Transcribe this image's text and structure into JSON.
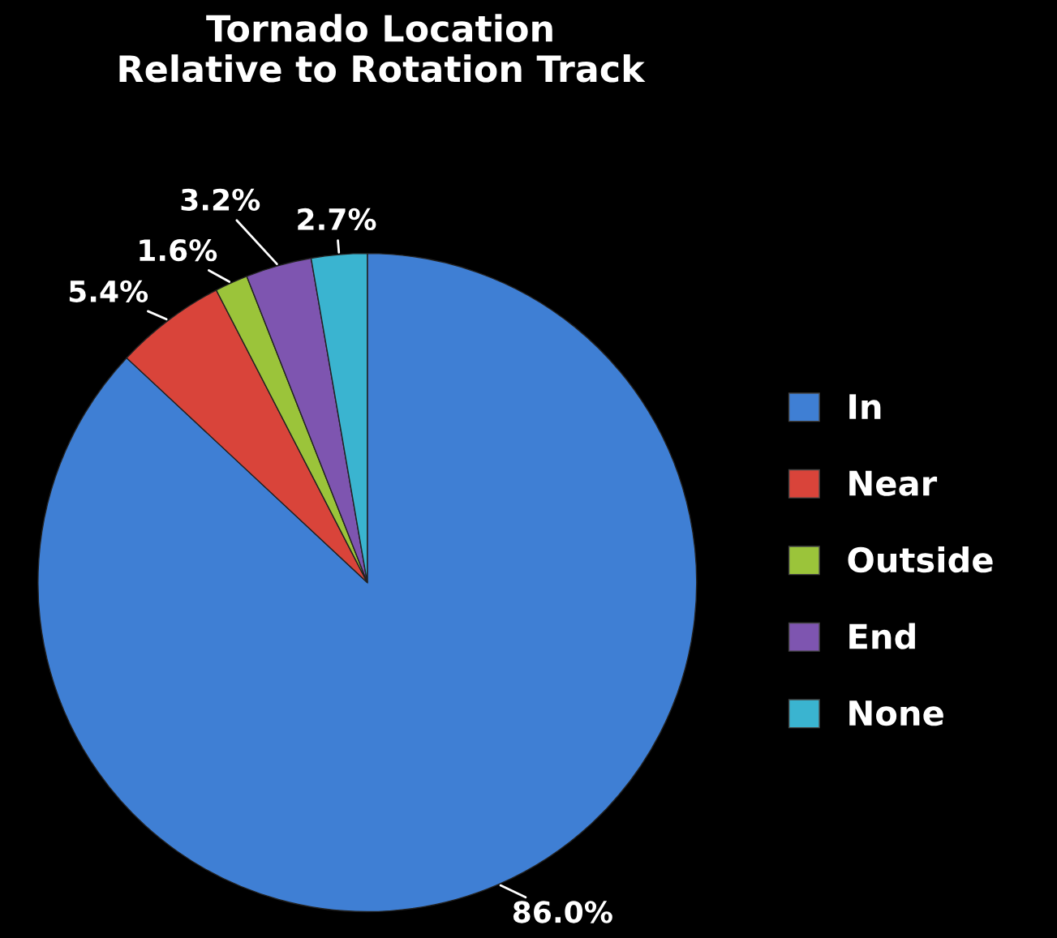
{
  "chart_data": {
    "type": "pie",
    "title": "Tornado Location\nRelative to Rotation Track",
    "categories": [
      "In",
      "Near",
      "Outside",
      "End",
      "None"
    ],
    "values": [
      86.0,
      5.4,
      1.6,
      3.2,
      2.7
    ],
    "colors": [
      "#3f7fd4",
      "#d9443a",
      "#9bc43a",
      "#7e55b0",
      "#3ab4d0"
    ],
    "value_labels": [
      "86.0%",
      "5.4%",
      "1.6%",
      "3.2%",
      "2.7%"
    ],
    "legend": "right"
  }
}
